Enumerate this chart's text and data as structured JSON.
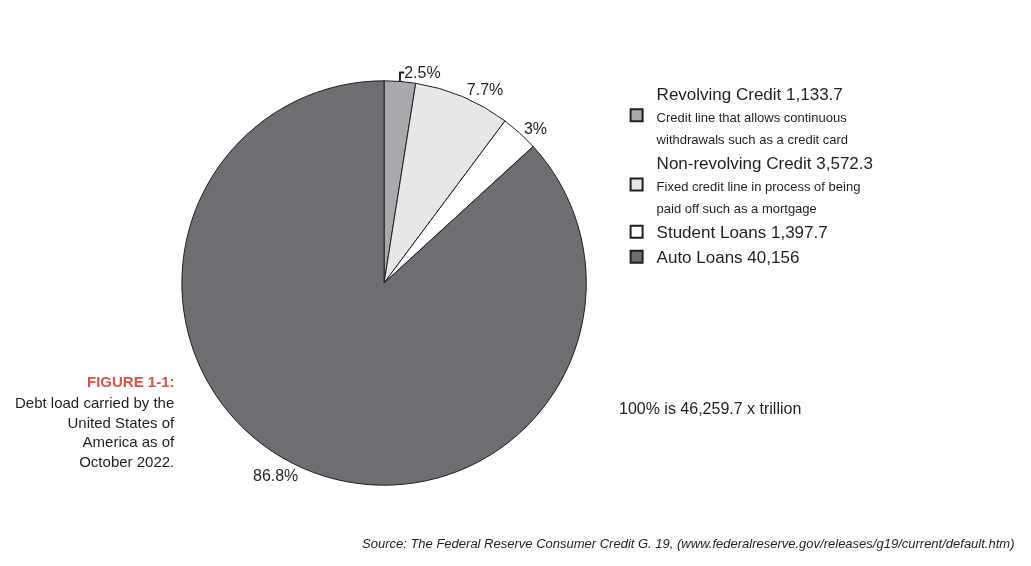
{
  "chart_data": {
    "type": "pie",
    "categories": [
      "Revolving Credit 1,133.7\nCredit line that allows continuous\nwithdrawals such as a credit card",
      "Non-revolving Credit 3,572.3\nFixed credit line in process of being\npaid off such as a mortgage",
      "Student Loans 1,397.7",
      "Auto Loans 40,156"
    ],
    "values": [
      2.5,
      7.7,
      3,
      86.8
    ],
    "value_labels": [
      "2.5%",
      "7.7%",
      "3%",
      "86.8%"
    ],
    "colors": [
      "#a7a9ac",
      "#e6e7e8",
      "#ffffff",
      "#6d6e71"
    ],
    "legend": "right",
    "annotations": [
      "FIGURE 1-1:",
      "Debt load carried by the\nUnited States of\nAmerica as of\nOctober 2022.",
      "100% is 46,259.7 x trillion",
      "Source: The Federal Reserve Consumer Credit G. 19, (www.federalreserve.gov/releases/g19/current/default.htm)"
    ]
  }
}
